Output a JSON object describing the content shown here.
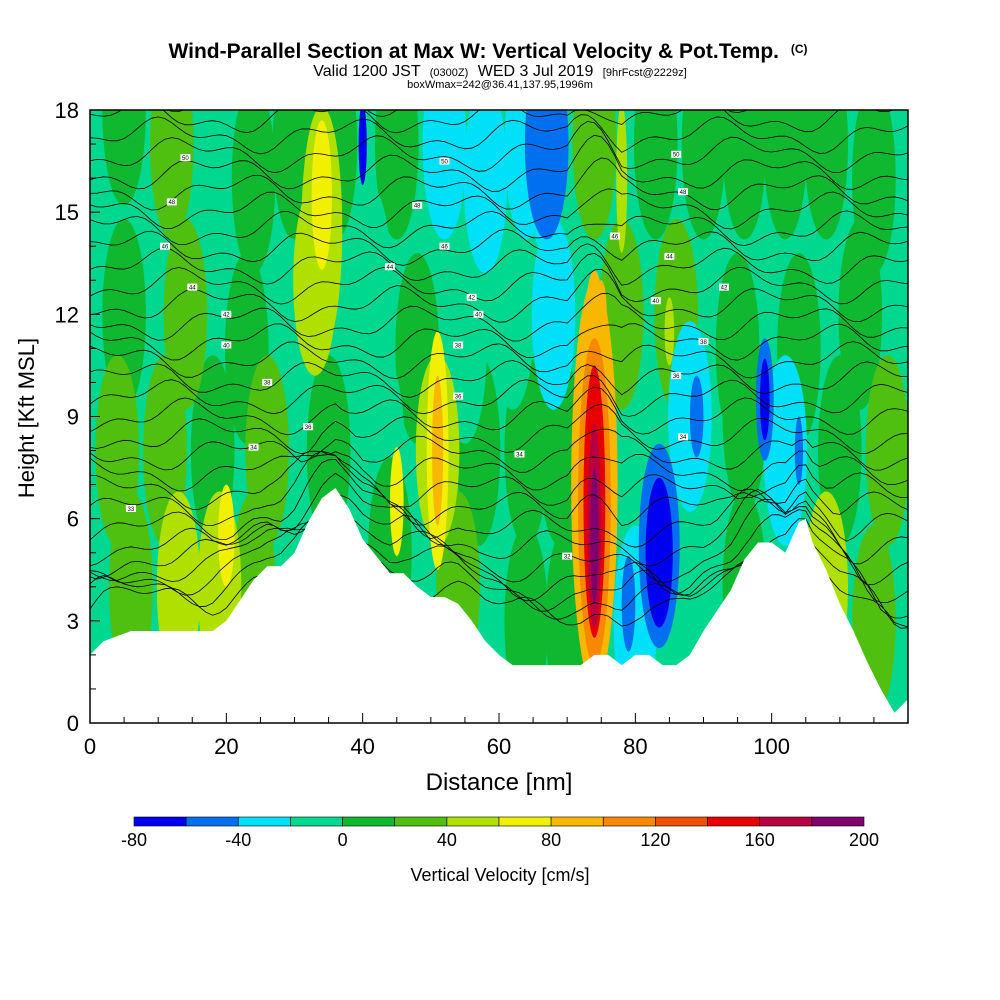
{
  "chart_data": {
    "type": "heatmap",
    "title": "Wind-Parallel Section at Max W: Vertical Velocity & Pot.Temp.",
    "title_mark": "(C)",
    "subtitle_parts": [
      "Valid 1200 JST",
      "(0300Z)",
      "WED 3 Jul 2019",
      "[9hrFcst@2229z]"
    ],
    "subtitle2": "boxWmax=242@36.41,137.95,1996m",
    "xlabel": "Distance [nm]",
    "ylabel": "Height [Kft MSL]",
    "xlim": [
      0,
      120
    ],
    "ylim": [
      0,
      18
    ],
    "xticks": [
      "0",
      "20",
      "40",
      "60",
      "80",
      "100"
    ],
    "yticks": [
      "0",
      "3",
      "6",
      "9",
      "12",
      "15",
      "18"
    ],
    "colorbar": {
      "label": "Vertical Velocity [cm/s]",
      "min": -80,
      "max": 200,
      "step": 20,
      "ticks": [
        "-80",
        "-40",
        "0",
        "40",
        "80",
        "120",
        "160",
        "200"
      ],
      "colors": [
        "#0000f0",
        "#0070f0",
        "#00e0f8",
        "#00d890",
        "#10b830",
        "#50c010",
        "#b0e000",
        "#f0f000",
        "#f8b800",
        "#f88800",
        "#f05000",
        "#e80000",
        "#b80040",
        "#800070"
      ]
    },
    "terrain": {
      "x": [
        0,
        2,
        6,
        10,
        14,
        18,
        20,
        22,
        24,
        26,
        28,
        30,
        32,
        34,
        36,
        38,
        40,
        42,
        44,
        46,
        48,
        50,
        52,
        54,
        56,
        58,
        60,
        62,
        64,
        66,
        68,
        70,
        72,
        74,
        76,
        78,
        80,
        82,
        84,
        86,
        88,
        90,
        92,
        94,
        96,
        98,
        100,
        102,
        104,
        105,
        106,
        108,
        110,
        112,
        114,
        116,
        118,
        120
      ],
      "height_kft": [
        2.0,
        2.4,
        2.7,
        2.7,
        2.7,
        2.7,
        3.0,
        3.6,
        4.2,
        4.6,
        4.6,
        5.0,
        5.9,
        6.6,
        6.9,
        6.3,
        5.4,
        4.9,
        4.4,
        4.4,
        4.0,
        3.7,
        3.7,
        3.5,
        3.0,
        2.4,
        2.0,
        1.7,
        1.7,
        1.7,
        1.7,
        1.7,
        1.7,
        2.0,
        2.0,
        1.7,
        2.0,
        2.0,
        1.7,
        1.7,
        2.0,
        2.7,
        3.3,
        3.9,
        4.8,
        5.3,
        5.3,
        5.0,
        5.9,
        6.0,
        5.3,
        4.5,
        3.5,
        2.7,
        1.8,
        1.0,
        0.3,
        0.7
      ]
    },
    "theta_labels": [
      {
        "x": 14,
        "y": 16.6,
        "text": "50"
      },
      {
        "x": 12,
        "y": 15.3,
        "text": "48"
      },
      {
        "x": 11,
        "y": 14.0,
        "text": "46"
      },
      {
        "x": 15,
        "y": 12.8,
        "text": "44"
      },
      {
        "x": 20,
        "y": 12.0,
        "text": "42"
      },
      {
        "x": 20,
        "y": 11.1,
        "text": "40"
      },
      {
        "x": 26,
        "y": 10.0,
        "text": "38"
      },
      {
        "x": 32,
        "y": 8.7,
        "text": "36"
      },
      {
        "x": 24,
        "y": 8.1,
        "text": "34"
      },
      {
        "x": 6,
        "y": 6.3,
        "text": "33"
      },
      {
        "x": 52,
        "y": 16.5,
        "text": "50"
      },
      {
        "x": 48,
        "y": 15.2,
        "text": "48"
      },
      {
        "x": 52,
        "y": 14.0,
        "text": "46"
      },
      {
        "x": 44,
        "y": 13.4,
        "text": "44"
      },
      {
        "x": 56,
        "y": 12.5,
        "text": "42"
      },
      {
        "x": 57,
        "y": 12.0,
        "text": "40"
      },
      {
        "x": 54,
        "y": 11.1,
        "text": "38"
      },
      {
        "x": 54,
        "y": 9.6,
        "text": "36"
      },
      {
        "x": 63,
        "y": 7.9,
        "text": "34"
      },
      {
        "x": 70,
        "y": 4.9,
        "text": "32"
      },
      {
        "x": 86,
        "y": 16.7,
        "text": "50"
      },
      {
        "x": 87,
        "y": 15.6,
        "text": "48"
      },
      {
        "x": 77,
        "y": 14.3,
        "text": "46"
      },
      {
        "x": 85,
        "y": 13.7,
        "text": "44"
      },
      {
        "x": 83,
        "y": 12.4,
        "text": "40"
      },
      {
        "x": 93,
        "y": 12.8,
        "text": "42"
      },
      {
        "x": 90,
        "y": 11.2,
        "text": "38"
      },
      {
        "x": 86,
        "y": 10.2,
        "text": "36"
      },
      {
        "x": 87,
        "y": 8.4,
        "text": "34"
      }
    ]
  }
}
